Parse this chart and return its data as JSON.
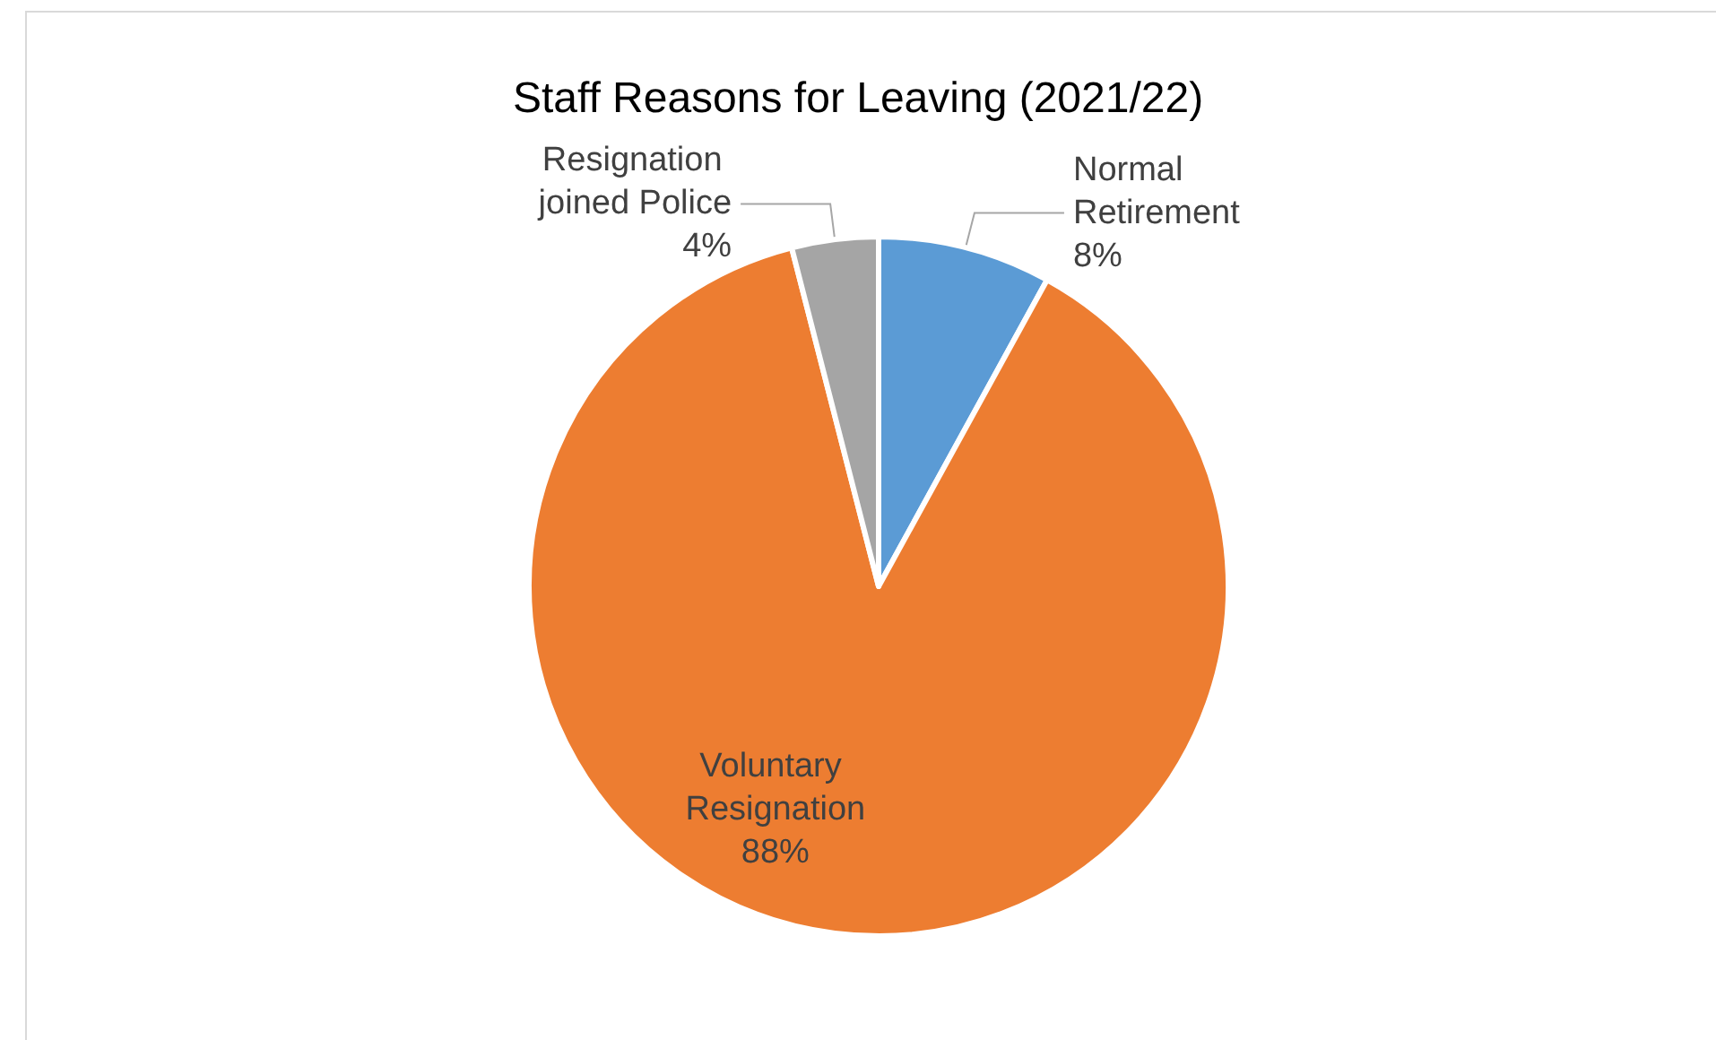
{
  "chart_data": {
    "type": "pie",
    "title": "Staff Reasons for Leaving (2021/22)",
    "categories": [
      "Normal Retirement",
      "Voluntary Resignation",
      "Resignation joined Police"
    ],
    "values": [
      8,
      88,
      4
    ],
    "colors": [
      "#5b9bd5",
      "#ed7d31",
      "#a5a5a5"
    ],
    "value_labels": [
      "8%",
      "88%",
      "4%"
    ],
    "legend": false
  }
}
